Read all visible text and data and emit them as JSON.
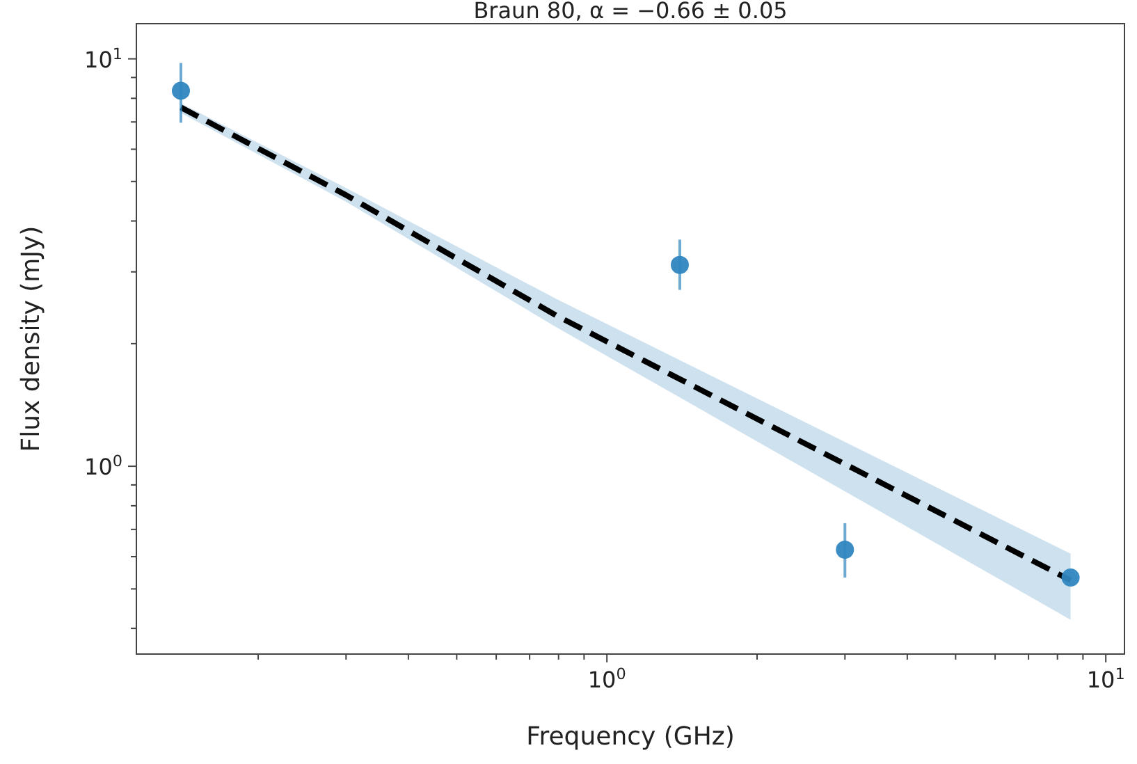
{
  "chart_data": {
    "type": "scatter",
    "title": "Braun 80, α = −0.66 ± 0.05",
    "xlabel": "Frequency (GHz)",
    "ylabel": "Flux density (mJy)",
    "log": "xy",
    "xlim": [
      0.114,
      10.9
    ],
    "ylim": [
      0.346,
      12.2
    ],
    "xticks": [
      {
        "value": 0.2,
        "label": null
      },
      {
        "value": 0.3,
        "label": null
      },
      {
        "value": 0.4,
        "label": null
      },
      {
        "value": 0.5,
        "label": null
      },
      {
        "value": 0.6,
        "label": null
      },
      {
        "value": 0.7,
        "label": null
      },
      {
        "value": 0.8,
        "label": null
      },
      {
        "value": 0.9,
        "label": null
      },
      {
        "value": 1,
        "label": "10$^{0}$"
      },
      {
        "value": 2,
        "label": null
      },
      {
        "value": 3,
        "label": null
      },
      {
        "value": 4,
        "label": null
      },
      {
        "value": 5,
        "label": null
      },
      {
        "value": 6,
        "label": null
      },
      {
        "value": 7,
        "label": null
      },
      {
        "value": 8,
        "label": null
      },
      {
        "value": 9,
        "label": null
      },
      {
        "value": 10,
        "label": "10$^{1}$"
      }
    ],
    "yticks": [
      {
        "value": 0.4,
        "label": null
      },
      {
        "value": 0.5,
        "label": null
      },
      {
        "value": 0.6,
        "label": null
      },
      {
        "value": 0.7,
        "label": null
      },
      {
        "value": 0.8,
        "label": null
      },
      {
        "value": 0.9,
        "label": null
      },
      {
        "value": 1,
        "label": "10$^{0}$"
      },
      {
        "value": 2,
        "label": null
      },
      {
        "value": 3,
        "label": null
      },
      {
        "value": 4,
        "label": null
      },
      {
        "value": 5,
        "label": null
      },
      {
        "value": 6,
        "label": null
      },
      {
        "value": 7,
        "label": null
      },
      {
        "value": 8,
        "label": null
      },
      {
        "value": 9,
        "label": null
      },
      {
        "value": 10,
        "label": "10$^{1}$"
      }
    ],
    "series": [
      {
        "type": "line",
        "color": "#000000",
        "line_style": "dashed",
        "marker": "none",
        "x": [
          0.14,
          0.3,
          0.794,
          8.5
        ],
        "values": [
          7.6,
          4.63,
          2.34,
          0.525
        ],
        "lower": [
          7.37,
          4.46,
          2.19,
          0.42
        ],
        "upper": [
          7.78,
          4.82,
          2.57,
          0.61
        ]
      },
      {
        "color": "#2f86c0",
        "marker": "circle",
        "x": [
          0.14,
          1.4,
          3.0,
          8.5
        ],
        "values": [
          8.35,
          3.12,
          0.624,
          0.533
        ],
        "errors": [
          [
            6.97,
            9.77
          ],
          [
            2.71,
            3.6
          ],
          [
            0.533,
            0.725
          ],
          null
        ]
      }
    ]
  }
}
